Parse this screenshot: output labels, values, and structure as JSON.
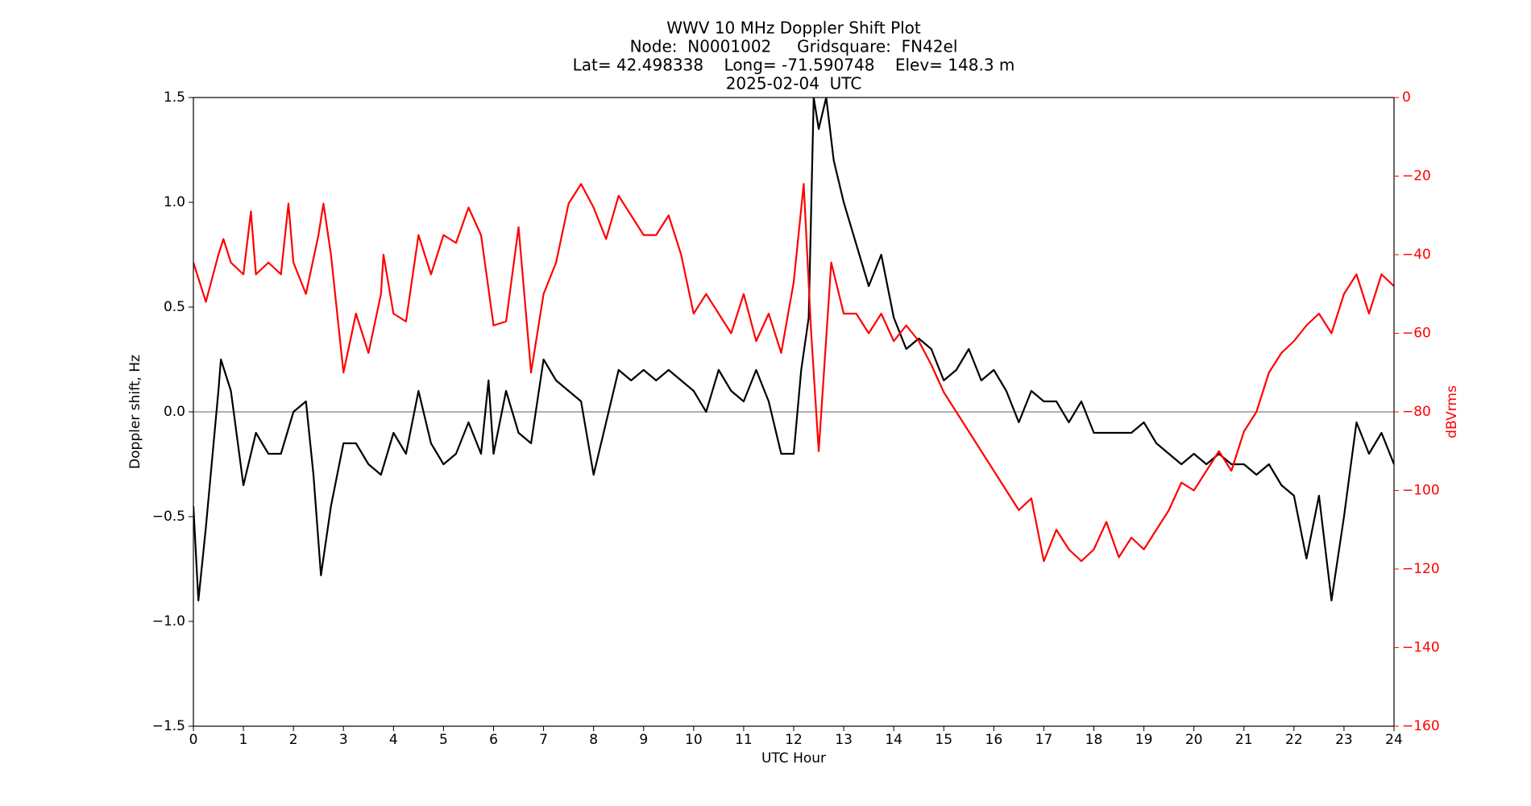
{
  "chart_data": {
    "type": "line",
    "title": [
      "WWV 10 MHz Doppler Shift Plot",
      "Node:  N0001002     Gridsquare:  FN42el",
      "Lat= 42.498338    Long= -71.590748    Elev= 148.3 m",
      "2025-02-04  UTC"
    ],
    "x_label": "UTC Hour",
    "y_label": "Doppler shift, Hz",
    "y2_label": "dBVrms",
    "y2_color": "#ff0000",
    "xlim": [
      0,
      24
    ],
    "xticks": [
      0,
      1,
      2,
      3,
      4,
      5,
      6,
      7,
      8,
      9,
      10,
      11,
      12,
      13,
      14,
      15,
      16,
      17,
      18,
      19,
      20,
      21,
      22,
      23,
      24
    ],
    "ylim": [
      -1.5,
      1.5
    ],
    "yticks": [
      {
        "value": -1.5,
        "label": "−1.5"
      },
      {
        "value": -1,
        "label": "−1.0"
      },
      {
        "value": -0.5,
        "label": "−0.5"
      },
      {
        "value": 0,
        "label": "0.0"
      },
      {
        "value": 0.5,
        "label": "0.5"
      },
      {
        "value": 1,
        "label": "1.0"
      },
      {
        "value": 1.5,
        "label": "1.5"
      }
    ],
    "y2lim": [
      -160,
      0
    ],
    "y2ticks": [
      {
        "value": -160,
        "label": "−160"
      },
      {
        "value": -140,
        "label": "−140"
      },
      {
        "value": -120,
        "label": "−120"
      },
      {
        "value": -100,
        "label": "−100"
      },
      {
        "value": -80,
        "label": "−80"
      },
      {
        "value": -60,
        "label": "−60"
      },
      {
        "value": -40,
        "label": "−40"
      },
      {
        "value": -20,
        "label": "−20"
      },
      0
    ],
    "hline": 0,
    "series": [
      {
        "color": "#000000",
        "x": [
          0,
          0.1,
          0.25,
          0.5,
          0.55,
          0.75,
          1,
          1.25,
          1.5,
          1.75,
          2,
          2.25,
          2.4,
          2.55,
          2.75,
          3,
          3.25,
          3.5,
          3.75,
          4,
          4.25,
          4.5,
          4.75,
          5,
          5.25,
          5.5,
          5.75,
          5.9,
          6,
          6.25,
          6.5,
          6.75,
          7,
          7.25,
          7.5,
          7.75,
          8,
          8.25,
          8.5,
          8.75,
          9,
          9.25,
          9.5,
          9.75,
          10,
          10.25,
          10.5,
          10.75,
          11,
          11.25,
          11.5,
          11.75,
          12,
          12.15,
          12.3,
          12.4,
          12.5,
          12.65,
          12.8,
          13,
          13.25,
          13.5,
          13.75,
          14,
          14.25,
          14.5,
          14.75,
          15,
          15.25,
          15.5,
          15.75,
          16,
          16.25,
          16.5,
          16.75,
          17,
          17.25,
          17.5,
          17.75,
          18,
          18.25,
          18.5,
          18.75,
          19,
          19.25,
          19.5,
          19.75,
          20,
          20.25,
          20.5,
          20.75,
          21,
          21.25,
          21.5,
          21.75,
          22,
          22.25,
          22.5,
          22.75,
          23,
          23.25,
          23.5,
          23.75,
          24
        ],
        "values": [
          -0.45,
          -0.9,
          -0.55,
          0.1,
          0.25,
          0.1,
          -0.35,
          -0.1,
          -0.2,
          -0.2,
          0,
          0.05,
          -0.3,
          -0.78,
          -0.45,
          -0.15,
          -0.15,
          -0.25,
          -0.3,
          -0.1,
          -0.2,
          0.1,
          -0.15,
          -0.25,
          -0.2,
          -0.05,
          -0.2,
          0.15,
          -0.2,
          0.1,
          -0.1,
          -0.15,
          0.25,
          0.15,
          0.1,
          0.05,
          -0.3,
          -0.05,
          0.2,
          0.15,
          0.2,
          0.15,
          0.2,
          0.15,
          0.1,
          0,
          0.2,
          0.1,
          0.05,
          0.2,
          0.05,
          -0.2,
          -0.2,
          0.2,
          0.45,
          1.5,
          1.35,
          1.5,
          1.2,
          1,
          0.8,
          0.6,
          0.75,
          0.45,
          0.3,
          0.35,
          0.3,
          0.15,
          0.2,
          0.3,
          0.15,
          0.2,
          0.1,
          -0.05,
          0.1,
          0.05,
          0.05,
          -0.05,
          0.05,
          -0.1,
          -0.1,
          -0.1,
          -0.1,
          -0.05,
          -0.15,
          -0.2,
          -0.25,
          -0.2,
          -0.25,
          -0.2,
          -0.25,
          -0.25,
          -0.3,
          -0.25,
          -0.35,
          -0.4,
          -0.7,
          -0.4,
          -0.9,
          -0.5,
          -0.05,
          -0.2,
          -0.1,
          -0.25
        ]
      },
      {
        "color": "#ff0000",
        "axis": "y2",
        "x": [
          0,
          0.25,
          0.5,
          0.6,
          0.75,
          1,
          1.15,
          1.25,
          1.5,
          1.75,
          1.9,
          2,
          2.25,
          2.5,
          2.6,
          2.75,
          3,
          3.25,
          3.5,
          3.75,
          3.8,
          4,
          4.25,
          4.5,
          4.75,
          5,
          5.25,
          5.5,
          5.75,
          6,
          6.25,
          6.5,
          6.75,
          7,
          7.25,
          7.5,
          7.75,
          8,
          8.25,
          8.5,
          8.75,
          9,
          9.25,
          9.5,
          9.75,
          10,
          10.25,
          10.5,
          10.75,
          11,
          11.25,
          11.5,
          11.75,
          12,
          12.2,
          12.35,
          12.5,
          12.75,
          13,
          13.25,
          13.5,
          13.75,
          14,
          14.25,
          14.5,
          14.75,
          15,
          15.25,
          15.5,
          15.75,
          16,
          16.25,
          16.5,
          16.75,
          17,
          17.25,
          17.5,
          17.75,
          18,
          18.25,
          18.5,
          18.75,
          19,
          19.25,
          19.5,
          19.75,
          20,
          20.25,
          20.5,
          20.75,
          21,
          21.25,
          21.5,
          21.75,
          22,
          22.25,
          22.5,
          22.75,
          23,
          23.25,
          23.5,
          23.75,
          24
        ],
        "values": [
          -42,
          -52,
          -40,
          -36,
          -42,
          -45,
          -29,
          -45,
          -42,
          -45,
          -27,
          -42,
          -50,
          -35,
          -27,
          -40,
          -70,
          -55,
          -65,
          -50,
          -40,
          -55,
          -57,
          -35,
          -45,
          -35,
          -37,
          -28,
          -35,
          -58,
          -57,
          -33,
          -70,
          -50,
          -42,
          -27,
          -22,
          -28,
          -36,
          -25,
          -30,
          -35,
          -35,
          -30,
          -40,
          -55,
          -50,
          -55,
          -60,
          -50,
          -62,
          -55,
          -65,
          -47,
          -22,
          -60,
          -90,
          -42,
          -55,
          -55,
          -60,
          -55,
          -62,
          -58,
          -62,
          -68,
          -75,
          -80,
          -85,
          -90,
          -95,
          -100,
          -105,
          -102,
          -118,
          -110,
          -115,
          -118,
          -115,
          -108,
          -117,
          -112,
          -115,
          -110,
          -105,
          -98,
          -100,
          -95,
          -90,
          -95,
          -85,
          -80,
          -70,
          -65,
          -62,
          -58,
          -55,
          -60,
          -50,
          -45,
          -55,
          -45,
          -48
        ]
      }
    ]
  }
}
